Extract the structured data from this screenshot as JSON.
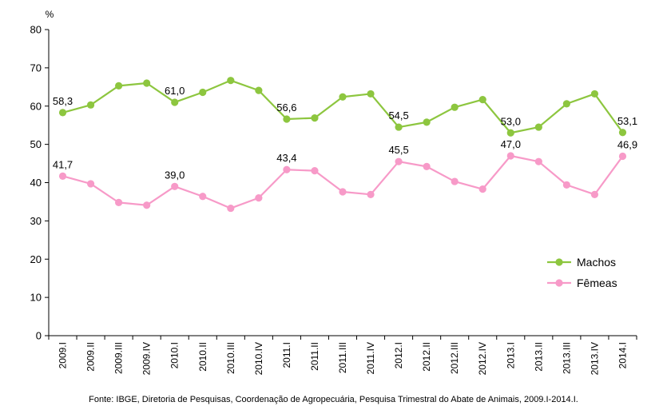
{
  "chart_data": {
    "type": "line",
    "unit_label": "%",
    "categories": [
      "2009.I",
      "2009.II",
      "2009.III",
      "2009.IV",
      "2010.I",
      "2010.II",
      "2010.III",
      "2010.IV",
      "2011.I",
      "2011.II",
      "2011.III",
      "2011.IV",
      "2012.I",
      "2012.II",
      "2012.III",
      "2012.IV",
      "2013.I",
      "2013.II",
      "2013.III",
      "2013.IV",
      "2014.I"
    ],
    "ylim": [
      0,
      80
    ],
    "yticks": [
      "0",
      "10",
      "20",
      "30",
      "40",
      "50",
      "60",
      "70",
      "80"
    ],
    "grid": false,
    "legend_position": "right",
    "series": [
      {
        "name": "Machos",
        "color": "#8dc63f",
        "values": [
          58.3,
          60.3,
          65.3,
          66.0,
          61.0,
          63.6,
          66.7,
          64.1,
          56.6,
          56.9,
          62.4,
          63.2,
          54.5,
          55.8,
          59.7,
          61.7,
          53.0,
          54.5,
          60.6,
          63.2,
          53.1
        ],
        "data_labels": [
          {
            "index": 0,
            "text": "58,3"
          },
          {
            "index": 4,
            "text": "61,0"
          },
          {
            "index": 8,
            "text": "56,6"
          },
          {
            "index": 12,
            "text": "54,5"
          },
          {
            "index": 16,
            "text": "53,0"
          },
          {
            "index": 20,
            "text": "53,1"
          }
        ]
      },
      {
        "name": "Fêmeas",
        "color": "#f79ac8",
        "values": [
          41.7,
          39.7,
          34.8,
          34.1,
          39.0,
          36.4,
          33.3,
          36.0,
          43.4,
          43.1,
          37.6,
          36.9,
          45.5,
          44.2,
          40.3,
          38.3,
          47.0,
          45.5,
          39.4,
          36.9,
          46.9
        ],
        "data_labels": [
          {
            "index": 0,
            "text": "41,7"
          },
          {
            "index": 4,
            "text": "39,0"
          },
          {
            "index": 8,
            "text": "43,4"
          },
          {
            "index": 12,
            "text": "45,5"
          },
          {
            "index": 16,
            "text": "47,0"
          },
          {
            "index": 20,
            "text": "46,9"
          }
        ]
      }
    ],
    "source": "Fonte: IBGE, Diretoria de Pesquisas, Coordenação de Agropecuária, Pesquisa Trimestral do Abate de Animais, 2009.I-2014.I."
  }
}
